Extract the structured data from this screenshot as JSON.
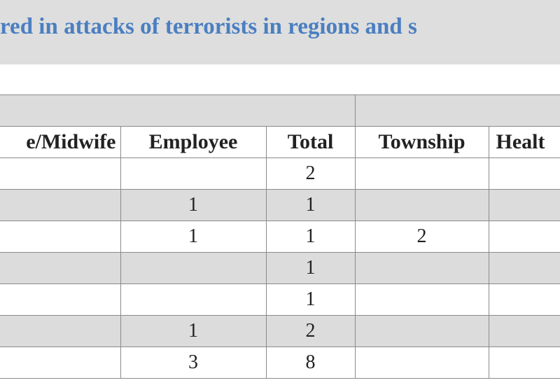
{
  "header": {
    "title": "red in attacks of terrorists in regions and s"
  },
  "table": {
    "columns": [
      "e/Midwife",
      "Employee",
      "Total",
      "Township",
      "Healt"
    ],
    "rows": [
      [
        null,
        null,
        "2",
        null,
        null
      ],
      [
        null,
        "1",
        "1",
        null,
        null
      ],
      [
        null,
        "1",
        "1",
        "2",
        null
      ],
      [
        null,
        null,
        "1",
        null,
        null
      ],
      [
        null,
        null,
        "1",
        null,
        null
      ],
      [
        null,
        "1",
        "2",
        null,
        null
      ],
      [
        null,
        "3",
        "8",
        null,
        null
      ]
    ]
  }
}
